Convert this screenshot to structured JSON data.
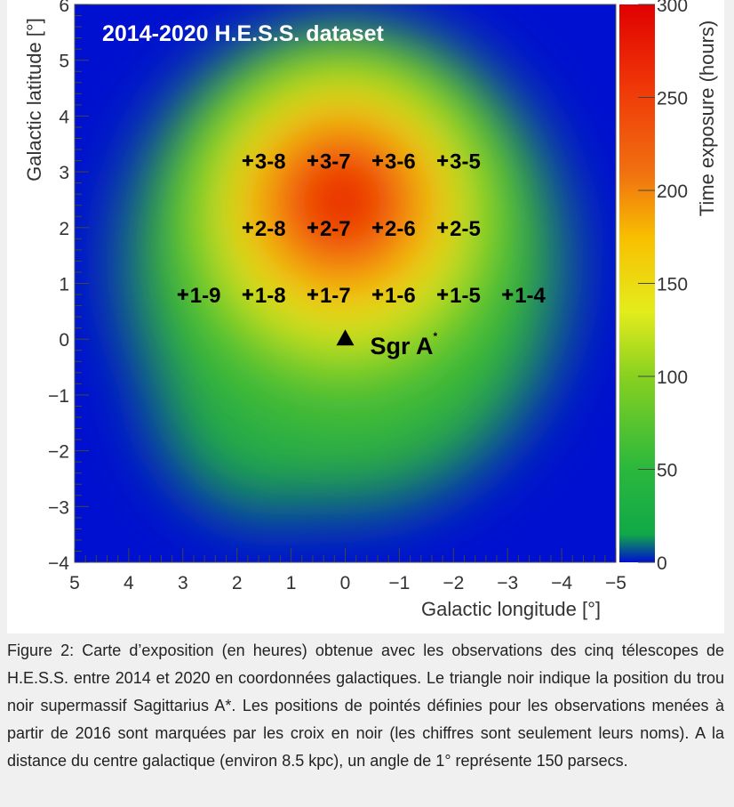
{
  "chart_data": {
    "type": "heatmap",
    "title": "2014-2020 H.E.S.S. dataset",
    "xlabel": "Galactic longitude [°]",
    "ylabel": "Galactic latitude [°]",
    "xlim": [
      5,
      -5
    ],
    "ylim": [
      -4,
      6
    ],
    "xticks": [
      "5",
      "4",
      "3",
      "2",
      "1",
      "0",
      "−1",
      "−2",
      "−3",
      "−4",
      "−5"
    ],
    "yticks": [
      "−4",
      "−3",
      "−2",
      "−1",
      "0",
      "1",
      "2",
      "3",
      "4",
      "5",
      "6"
    ],
    "colorbar": {
      "label": "Time exposure (hours)",
      "range": [
        0,
        300
      ],
      "ticks": [
        "0",
        "50",
        "100",
        "150",
        "200",
        "250",
        "300"
      ],
      "colormap": [
        "#0010d0",
        "#10a848",
        "#2cb83c",
        "#86d020",
        "#e4ec1c",
        "#f8c000",
        "#f07010",
        "#f03808",
        "#e00000"
      ]
    },
    "peak_region": {
      "l": 0,
      "b": 2.4,
      "approx_max_hours": 270
    },
    "pointings": [
      {
        "name": "3-8",
        "l": 1.8,
        "b": 3.2
      },
      {
        "name": "3-7",
        "l": 0.6,
        "b": 3.2
      },
      {
        "name": "3-6",
        "l": -0.6,
        "b": 3.2
      },
      {
        "name": "3-5",
        "l": -1.8,
        "b": 3.2
      },
      {
        "name": "2-8",
        "l": 1.8,
        "b": 2.0
      },
      {
        "name": "2-7",
        "l": 0.6,
        "b": 2.0
      },
      {
        "name": "2-6",
        "l": -0.6,
        "b": 2.0
      },
      {
        "name": "2-5",
        "l": -1.8,
        "b": 2.0
      },
      {
        "name": "1-9",
        "l": 3.0,
        "b": 0.8
      },
      {
        "name": "1-8",
        "l": 1.8,
        "b": 0.8
      },
      {
        "name": "1-7",
        "l": 0.6,
        "b": 0.8
      },
      {
        "name": "1-6",
        "l": -0.6,
        "b": 0.8
      },
      {
        "name": "1-5",
        "l": -1.8,
        "b": 0.8
      },
      {
        "name": "1-4",
        "l": -3.0,
        "b": 0.8
      }
    ],
    "source": {
      "name": "Sgr A",
      "superscript": "*",
      "l": 0,
      "b": 0,
      "marker": "triangle"
    }
  },
  "caption": "Figure 2: Carte d’exposition (en heures) obtenue avec les observations des cinq télescopes de H.E.S.S. entre 2014 et 2020 en coordonnées galactiques. Le triangle noir indique la position du trou noir supermassif Sagittarius A*. Les positions de pointés définies pour les observations menées à partir de 2016 sont marquées par les croix en noir (les chiffres sont seulement leurs noms). A la distance du centre galactique (environ 8.5 kpc), un angle de 1° représente 150 parsecs."
}
